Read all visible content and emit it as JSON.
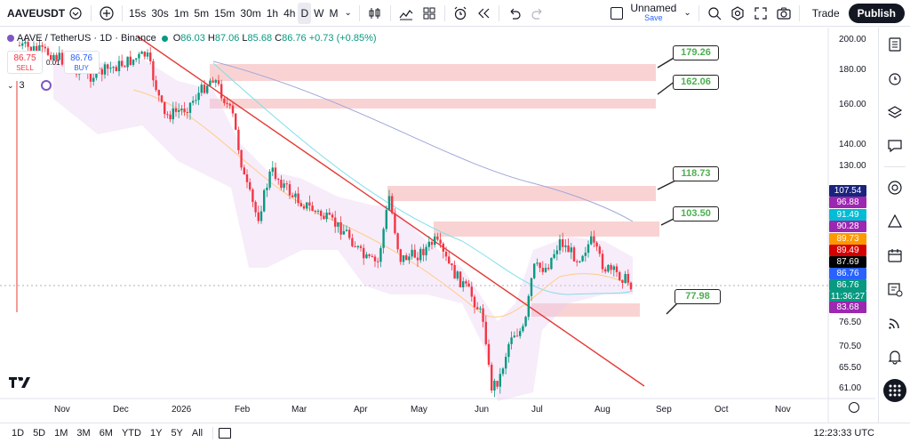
{
  "toolbar": {
    "symbol": "AAVEUSDT",
    "intervals": [
      "15s",
      "30s",
      "1m",
      "5m",
      "15m",
      "30m",
      "1h",
      "4h",
      "D",
      "W",
      "M"
    ],
    "active_interval": "D",
    "layout_name": "Unnamed",
    "layout_status": "Save",
    "trade_label": "Trade",
    "publish_label": "Publish"
  },
  "legend": {
    "title": "AAVE / TetherUS · 1D · Binance",
    "open_k": "O",
    "open": "86.03",
    "high_k": "H",
    "high": "87.06",
    "low_k": "L",
    "low": "85.68",
    "close_k": "C",
    "close": "86.76",
    "change": "+0.73 (+0.85%)"
  },
  "orderbox": {
    "sell_price": "86.75",
    "sell_label": "SELL",
    "spread": "0.01",
    "buy_price": "86.76",
    "buy_label": "BUY"
  },
  "indicators": {
    "count": "3"
  },
  "price_axis": {
    "labels": [
      "200.00",
      "180.00",
      "160.00",
      "140.00",
      "130.00",
      "76.50",
      "70.50",
      "65.50",
      "61.00"
    ],
    "badges": [
      {
        "value": "107.54",
        "color": "#1a237e"
      },
      {
        "value": "96.88",
        "color": "#9c27b0"
      },
      {
        "value": "91.49",
        "color": "#00bcd4"
      },
      {
        "value": "90.28",
        "color": "#9c27b0"
      },
      {
        "value": "89.73",
        "color": "#ff9800"
      },
      {
        "value": "89.49",
        "color": "#d50000"
      },
      {
        "value": "87.69",
        "color": "#000000"
      },
      {
        "value": "86.76",
        "color": "#2962ff"
      },
      {
        "value": "86.76",
        "color": "#089981"
      },
      {
        "value": "11:36:27",
        "color": "#089981"
      },
      {
        "value": "83.68",
        "color": "#9c27b0"
      }
    ]
  },
  "time_axis": {
    "labels": [
      "Nov",
      "Dec",
      "2026",
      "Feb",
      "Mar",
      "Apr",
      "May",
      "Jun",
      "Jul",
      "Aug",
      "Sep",
      "Oct",
      "Nov"
    ]
  },
  "callouts": [
    "179.26",
    "162.06",
    "118.73",
    "103.50",
    "77.98"
  ],
  "bottombar": {
    "ranges": [
      "1D",
      "5D",
      "1M",
      "3M",
      "6M",
      "YTD",
      "1Y",
      "5Y",
      "All"
    ],
    "clock": "12:23:33 UTC"
  },
  "colors": {
    "up": "#089981",
    "down": "#f23645",
    "zone": "#f8c8c8",
    "trendline": "#e53935"
  },
  "chart_data": {
    "type": "candlestick",
    "symbol": "AAVE / TetherUS",
    "interval": "1D",
    "last_close": 86.76,
    "resistance_zones": [
      179.26,
      162.06,
      118.73,
      103.5
    ],
    "support_zones": [
      77.98
    ]
  }
}
